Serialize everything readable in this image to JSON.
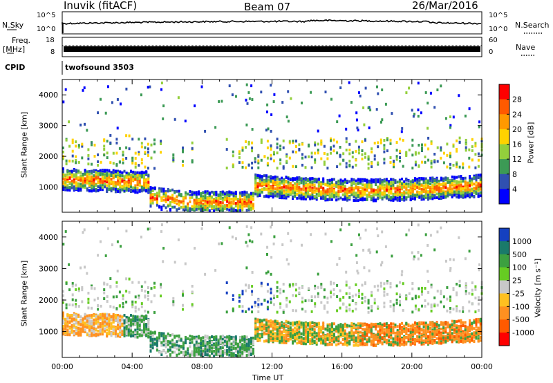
{
  "header": {
    "station": "Inuvik (fitACF)",
    "beam": "Beam 07",
    "date": "26/Mar/2016"
  },
  "nsky_panel": {
    "left_label": "N.Sky",
    "left_ticks": [
      "10^5",
      "10^0"
    ],
    "right_label": "N.Search",
    "right_ticks": [
      "10^5",
      "10^0"
    ]
  },
  "freq_panel": {
    "left_label_line1": "Freq.",
    "left_label_line2": "[MHz]",
    "left_ticks": [
      "18",
      "8"
    ],
    "right_label": "Nave",
    "right_ticks": [
      "60",
      "0"
    ]
  },
  "cpid_panel": {
    "label": "CPID",
    "program": "twofsound 3503"
  },
  "chart_data": [
    {
      "type": "heatmap",
      "title": "Power",
      "ylabel": "Slant Range [km]",
      "xlabel": "Time UT",
      "ylim": [
        180,
        4500
      ],
      "yticks": [
        "1000",
        "2000",
        "3000",
        "4000"
      ],
      "x_ticks": [
        "00:00",
        "04:00",
        "08:00",
        "12:00",
        "16:00",
        "20:00",
        "00:00"
      ],
      "colorbar": {
        "label": "Power [dB]",
        "ticks": [
          "28",
          "24",
          "20",
          "16",
          "12",
          "8",
          "4"
        ],
        "colors": [
          "#ff0000",
          "#ff5a00",
          "#ff9900",
          "#ffd200",
          "#93cf3c",
          "#3c9a55",
          "#3050b0",
          "#0000ff"
        ]
      }
    },
    {
      "type": "heatmap",
      "title": "Velocity",
      "ylabel": "Slant Range [km]",
      "xlabel": "Time UT",
      "ylim": [
        180,
        4500
      ],
      "yticks": [
        "1000",
        "2000",
        "3000",
        "4000"
      ],
      "x_ticks": [
        "00:00",
        "04:00",
        "08:00",
        "12:00",
        "16:00",
        "20:00",
        "00:00"
      ],
      "colorbar": {
        "label": "Velocity [m s⁻¹]",
        "ticks": [
          "1000",
          "500",
          "100",
          "25",
          "-25",
          "-100",
          "-500",
          "-1000"
        ],
        "colors": [
          "#1540c0",
          "#1a7a6a",
          "#3ca040",
          "#66cc22",
          "#c8c8c8",
          "#ffc020",
          "#ff9020",
          "#ff5a00",
          "#ff0000"
        ]
      }
    }
  ]
}
